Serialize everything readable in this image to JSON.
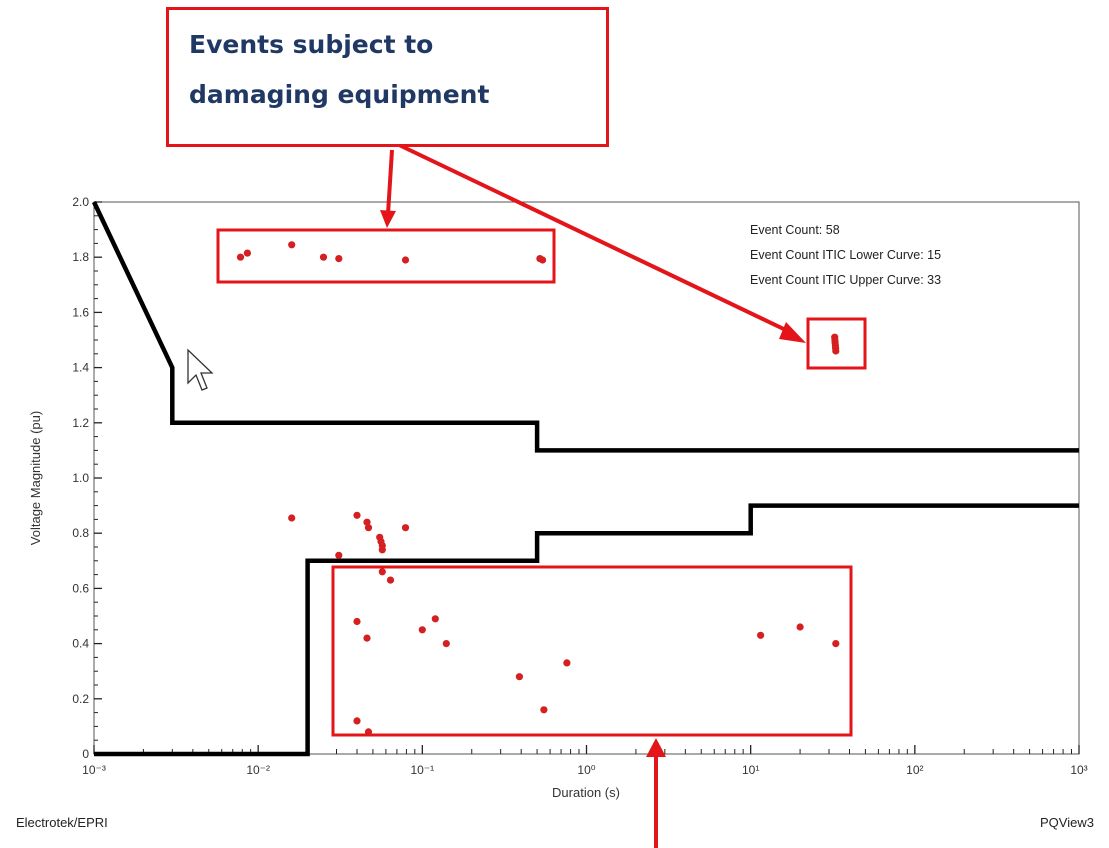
{
  "annotation": {
    "text": "Events subject to\ndamaging equipment"
  },
  "footer": {
    "left": "Electrotek/EPRI",
    "right": "PQView3"
  },
  "chart_data": {
    "type": "scatter",
    "xscale": "log",
    "xlim": [
      0.001,
      1000
    ],
    "ylim": [
      0,
      2.0
    ],
    "xlabel": "Duration (s)",
    "ylabel": "Voltage Magnitude (pu)",
    "x_tick_labels": [
      "10⁻³",
      "10⁻²",
      "10⁻¹",
      "10⁰",
      "10¹",
      "10²",
      "10³"
    ],
    "y_tick_labels": [
      "0",
      "0.2",
      "0.4",
      "0.6",
      "0.8",
      "1.0",
      "1.2",
      "1.4",
      "1.6",
      "1.8",
      "2.0"
    ],
    "stats": [
      "Event Count: 58",
      "Event Count ITIC Lower Curve: 15",
      "Event Count ITIC Upper Curve: 33"
    ],
    "series": [
      {
        "kind": "line",
        "color": "#000000",
        "points": [
          [
            0.001,
            2.0
          ],
          [
            0.003,
            1.4
          ],
          [
            0.003,
            1.2
          ],
          [
            0.5,
            1.2
          ],
          [
            0.5,
            1.1
          ],
          [
            1000,
            1.1
          ]
        ]
      },
      {
        "kind": "line",
        "color": "#000000",
        "points": [
          [
            0.001,
            0
          ],
          [
            0.02,
            0
          ],
          [
            0.02,
            0.7
          ],
          [
            0.5,
            0.7
          ],
          [
            0.5,
            0.8
          ],
          [
            10,
            0.8
          ],
          [
            10,
            0.9
          ],
          [
            1000,
            0.9
          ]
        ]
      },
      {
        "kind": "scatter",
        "color": "#d42020",
        "points": [
          [
            0.0078,
            1.8
          ],
          [
            0.0086,
            1.815
          ],
          [
            0.016,
            1.845
          ],
          [
            0.025,
            1.8
          ],
          [
            0.031,
            1.795
          ],
          [
            0.079,
            1.79
          ],
          [
            0.52,
            1.795
          ],
          [
            0.54,
            1.79
          ],
          [
            32.5,
            1.51
          ],
          [
            32.6,
            1.5
          ],
          [
            32.7,
            1.49
          ],
          [
            32.8,
            1.48
          ],
          [
            32.9,
            1.47
          ],
          [
            33.0,
            1.46
          ],
          [
            0.016,
            0.855
          ],
          [
            0.04,
            0.865
          ],
          [
            0.046,
            0.84
          ],
          [
            0.047,
            0.82
          ],
          [
            0.079,
            0.82
          ],
          [
            0.055,
            0.785
          ],
          [
            0.056,
            0.77
          ],
          [
            0.057,
            0.755
          ],
          [
            0.057,
            0.74
          ],
          [
            0.031,
            0.72
          ],
          [
            0.057,
            0.66
          ],
          [
            0.064,
            0.63
          ],
          [
            0.04,
            0.48
          ],
          [
            0.046,
            0.42
          ],
          [
            0.1,
            0.45
          ],
          [
            0.12,
            0.49
          ],
          [
            0.14,
            0.4
          ],
          [
            0.39,
            0.28
          ],
          [
            0.76,
            0.33
          ],
          [
            0.55,
            0.16
          ],
          [
            0.04,
            0.12
          ],
          [
            0.047,
            0.08
          ],
          [
            11.5,
            0.43
          ],
          [
            20,
            0.46
          ],
          [
            33,
            0.4
          ]
        ]
      }
    ]
  }
}
